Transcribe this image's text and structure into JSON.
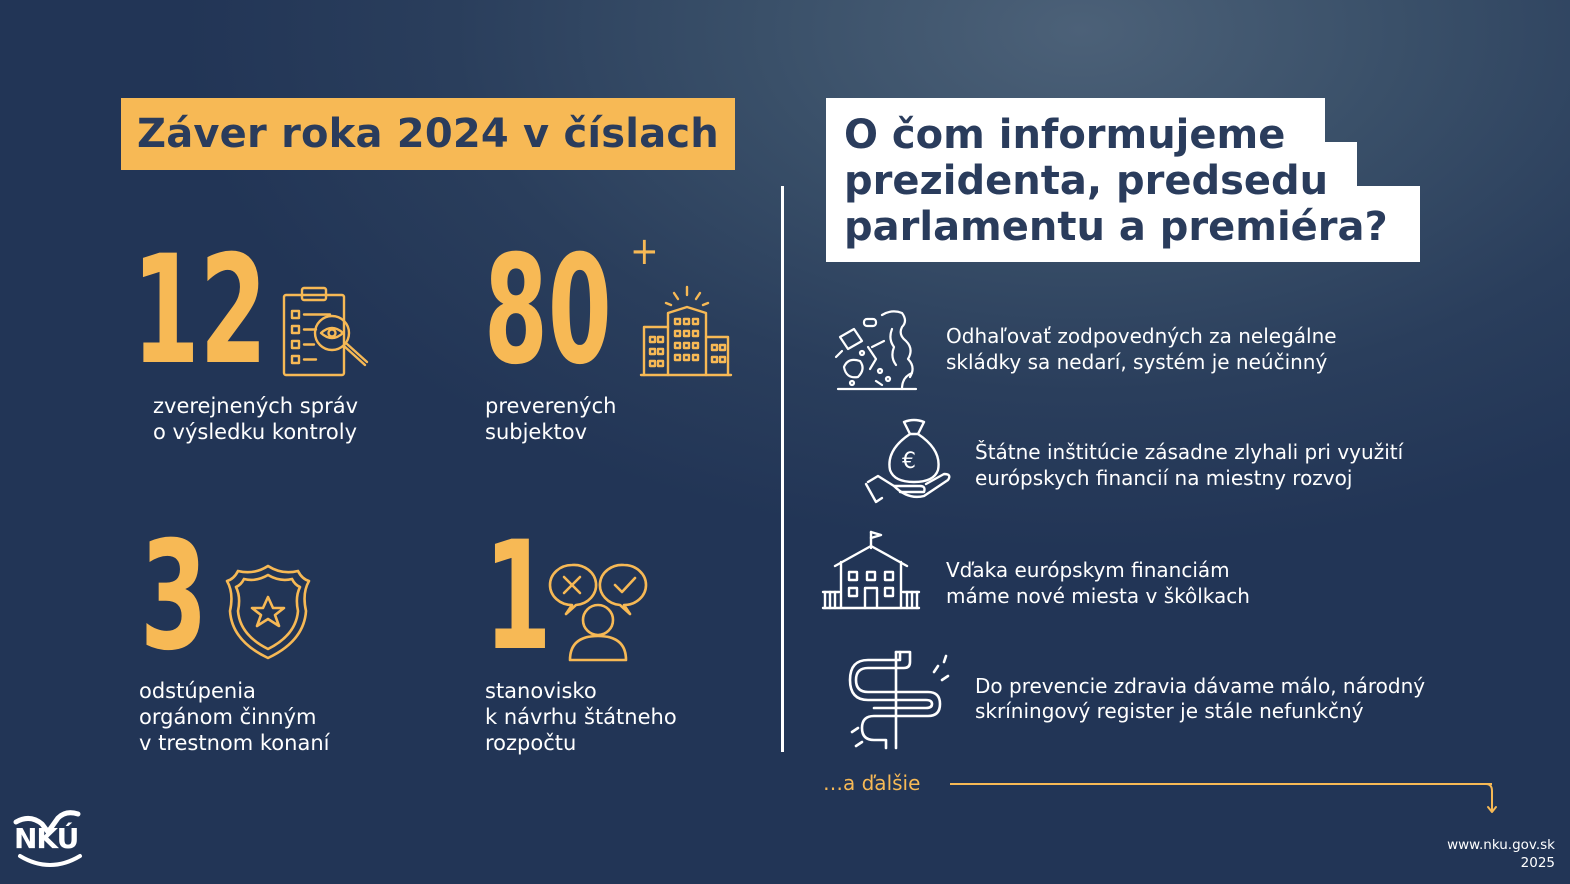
{
  "left_title": "Záver roka 2024 v číslach",
  "right_title": {
    "line1": "O čom informujeme",
    "line2": "prezidenta, predsedu",
    "line3": "parlamentu a premiéra?"
  },
  "stats": [
    {
      "number": "12",
      "label_line1": "zverejnených správ",
      "label_line2": "o výsledku kontroly",
      "icon": "clipboard-magnifier-icon"
    },
    {
      "number": "80",
      "suffix": "+",
      "label_line1": "preverených",
      "label_line2": "subjektov",
      "icon": "buildings-icon"
    },
    {
      "number": "3",
      "label_line1": "odstúpenia",
      "label_line2": "orgánom činným",
      "label_line3": "v trestnom konaní",
      "icon": "police-badge-icon"
    },
    {
      "number": "1",
      "label_line1": "stanovisko",
      "label_line2": "k návrhu štátneho",
      "label_line3": "rozpočtu",
      "icon": "person-decision-icon"
    }
  ],
  "topics": [
    {
      "line1": "Odhaľovať zodpovedných za nelegálne",
      "line2": "skládky sa nedarí, systém je neúčinný",
      "icon": "illegal-dump-icon"
    },
    {
      "line1": "Štátne inštitúcie zásadne zlyhali pri využití",
      "line2": "európskych financií na miestny rozvoj",
      "icon": "euro-moneybag-hand-icon"
    },
    {
      "line1": "Vďaka európskym financiám",
      "line2": "máme nové miesta v škôlkach",
      "icon": "school-building-icon"
    },
    {
      "line1": "Do prevencie zdravia dávame málo, národný",
      "line2": "skríningový register je stále nefunkčný",
      "icon": "intestine-icon"
    }
  ],
  "more_label": "…a ďalšie",
  "logo_text": "NKÚ",
  "footer": {
    "url": "www.nku.gov.sk",
    "year": "2025"
  },
  "colors": {
    "accent": "#f7b955",
    "navy": "#2a3c5c",
    "background": "#2a3e5c",
    "white": "#ffffff"
  }
}
